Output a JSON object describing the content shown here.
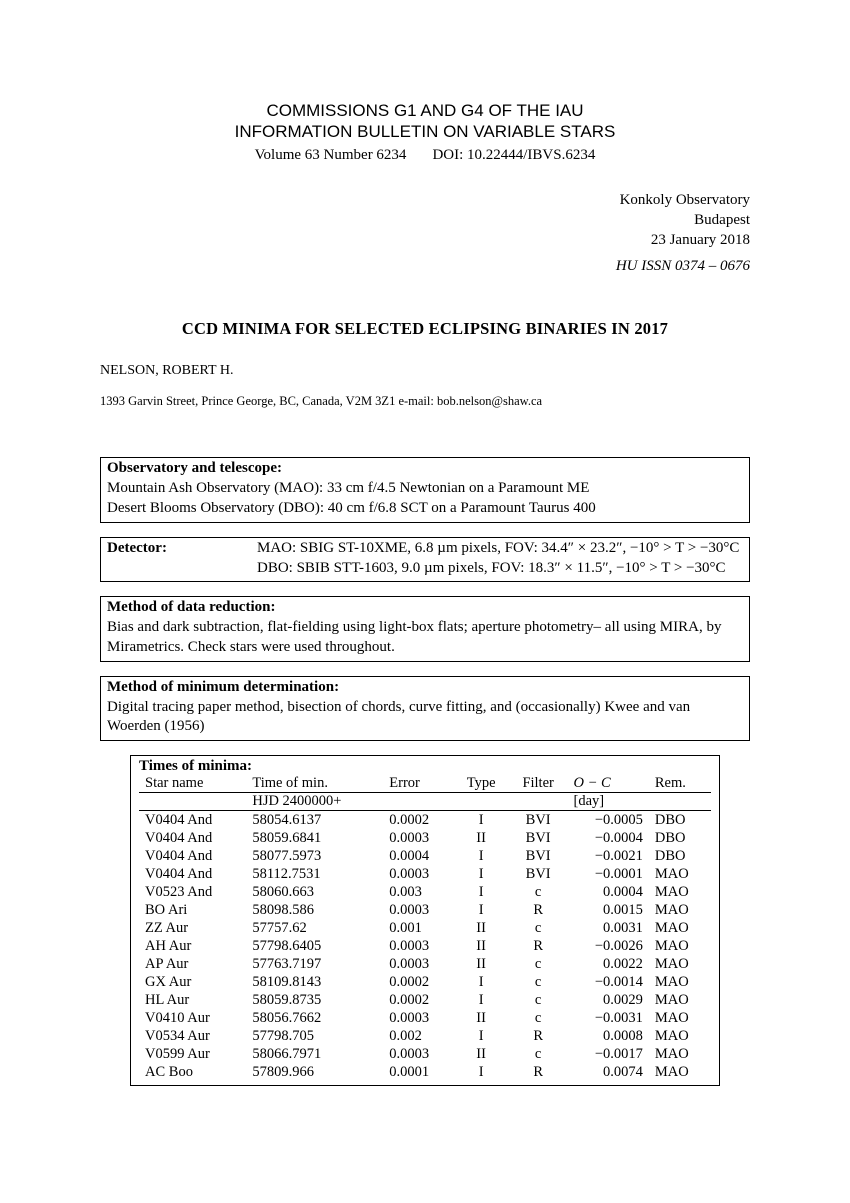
{
  "header": {
    "line1": "COMMISSIONS G1 AND G4 OF THE IAU",
    "line2": "INFORMATION BULLETIN ON VARIABLE STARS",
    "volume": "Volume 63 Number 6234",
    "doi": "DOI: 10.22444/IBVS.6234"
  },
  "observ": {
    "l1": "Konkoly Observatory",
    "l2": "Budapest",
    "l3": "23 January 2018",
    "issn": "HU ISSN 0374 – 0676"
  },
  "title": "CCD MINIMA FOR SELECTED ECLIPSING BINARIES IN 2017",
  "author": "NELSON, ROBERT H.",
  "affiliation": "1393 Garvin Street, Prince George, BC, Canada, V2M 3Z1 e-mail: bob.nelson@shaw.ca",
  "boxes": {
    "obs_tel_hdr": "Observatory and telescope:",
    "obs_tel_l1": "Mountain Ash Observatory (MAO): 33 cm f/4.5 Newtonian on a Paramount ME",
    "obs_tel_l2": "Desert Blooms Observatory (DBO): 40 cm f/6.8 SCT on a Paramount Taurus 400",
    "detector_hdr": "Detector:",
    "detector_l1": "MAO: SBIG ST-10XME, 6.8 µm pixels, FOV: 34.4″ × 23.2″, −10° > T > −30°C",
    "detector_l2": "DBO: SBIB STT-1603, 9.0 µm pixels, FOV: 18.3″ × 11.5″, −10° > T > −30°C",
    "reduction_hdr": "Method of data reduction:",
    "reduction_body": "Bias and dark subtraction, flat-fielding using light-box flats; aperture photometry– all using MIRA, by Mirametrics. Check stars were used throughout.",
    "minimum_hdr": "Method of minimum determination:",
    "minimum_body": "Digital tracing paper method, bisection of chords, curve fitting, and (occasionally) Kwee and van Woerden (1956)"
  },
  "minima": {
    "heading": "Times of minima:",
    "columns": {
      "star": "Star name",
      "time": "Time of min.",
      "time_sub": "HJD 2400000+",
      "error": "Error",
      "type": "Type",
      "filter": "Filter",
      "oc": "O − C",
      "oc_sub": "[day]",
      "rem": "Rem."
    },
    "rows": [
      {
        "star": "V0404 And",
        "time": "58054.6137",
        "error": "0.0002",
        "type": "I",
        "filter": "BVI",
        "oc": "−0.0005",
        "rem": "DBO"
      },
      {
        "star": "V0404 And",
        "time": "58059.6841",
        "error": "0.0003",
        "type": "II",
        "filter": "BVI",
        "oc": "−0.0004",
        "rem": "DBO"
      },
      {
        "star": "V0404 And",
        "time": "58077.5973",
        "error": "0.0004",
        "type": "I",
        "filter": "BVI",
        "oc": "−0.0021",
        "rem": "DBO"
      },
      {
        "star": "V0404 And",
        "time": "58112.7531",
        "error": "0.0003",
        "type": "I",
        "filter": "BVI",
        "oc": "−0.0001",
        "rem": "MAO"
      },
      {
        "star": "V0523 And",
        "time": "58060.663",
        "error": "0.003",
        "type": "I",
        "filter": "c",
        "oc": "0.0004",
        "rem": "MAO"
      },
      {
        "star": "BO Ari",
        "time": "58098.586",
        "error": "0.0003",
        "type": "I",
        "filter": "R",
        "oc": "0.0015",
        "rem": "MAO"
      },
      {
        "star": "ZZ Aur",
        "time": "57757.62",
        "error": "0.001",
        "type": "II",
        "filter": "c",
        "oc": "0.0031",
        "rem": "MAO"
      },
      {
        "star": "AH Aur",
        "time": "57798.6405",
        "error": "0.0003",
        "type": "II",
        "filter": "R",
        "oc": "−0.0026",
        "rem": "MAO"
      },
      {
        "star": "AP Aur",
        "time": "57763.7197",
        "error": "0.0003",
        "type": "II",
        "filter": "c",
        "oc": "0.0022",
        "rem": "MAO"
      },
      {
        "star": "GX Aur",
        "time": "58109.8143",
        "error": "0.0002",
        "type": "I",
        "filter": "c",
        "oc": "−0.0014",
        "rem": "MAO"
      },
      {
        "star": "HL Aur",
        "time": "58059.8735",
        "error": "0.0002",
        "type": "I",
        "filter": "c",
        "oc": "0.0029",
        "rem": "MAO"
      },
      {
        "star": "V0410 Aur",
        "time": "58056.7662",
        "error": "0.0003",
        "type": "II",
        "filter": "c",
        "oc": "−0.0031",
        "rem": "MAO"
      },
      {
        "star": "V0534 Aur",
        "time": "57798.705",
        "error": "0.002",
        "type": "I",
        "filter": "R",
        "oc": "0.0008",
        "rem": "MAO"
      },
      {
        "star": "V0599 Aur",
        "time": "58066.7971",
        "error": "0.0003",
        "type": "II",
        "filter": "c",
        "oc": "−0.0017",
        "rem": "MAO"
      },
      {
        "star": "AC Boo",
        "time": "57809.966",
        "error": "0.0001",
        "type": "I",
        "filter": "R",
        "oc": "0.0074",
        "rem": "MAO"
      }
    ]
  }
}
